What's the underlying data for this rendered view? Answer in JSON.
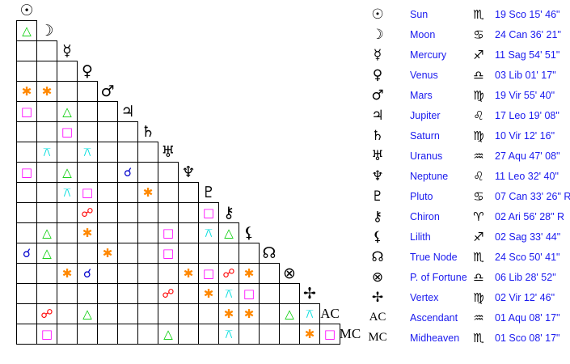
{
  "planets": [
    {
      "name": "Sun",
      "glyph": "☉",
      "sign_glyph": "♏",
      "position": "19 Sco 15' 46\""
    },
    {
      "name": "Moon",
      "glyph": "☽",
      "sign_glyph": "♋",
      "position": "24 Can 36' 21\""
    },
    {
      "name": "Mercury",
      "glyph": "☿",
      "sign_glyph": "♐",
      "position": "11 Sag 54' 51\""
    },
    {
      "name": "Venus",
      "glyph": "♀",
      "sign_glyph": "♎",
      "position": "03 Lib 01' 17\""
    },
    {
      "name": "Mars",
      "glyph": "♂",
      "sign_glyph": "♍",
      "position": "19 Vir 55' 40\""
    },
    {
      "name": "Jupiter",
      "glyph": "♃",
      "sign_glyph": "♌",
      "position": "17 Leo 19' 08\""
    },
    {
      "name": "Saturn",
      "glyph": "♄",
      "sign_glyph": "♍",
      "position": "10 Vir 12' 16\""
    },
    {
      "name": "Uranus",
      "glyph": "♅",
      "sign_glyph": "♒",
      "position": "27 Aqu 47' 08\""
    },
    {
      "name": "Neptune",
      "glyph": "♆",
      "sign_glyph": "♌",
      "position": "11 Leo 32' 40\""
    },
    {
      "name": "Pluto",
      "glyph": "♇",
      "sign_glyph": "♋",
      "position": "07 Can 33' 26\" R"
    },
    {
      "name": "Chiron",
      "glyph": "⚷",
      "sign_glyph": "♈",
      "position": "02 Ari 56' 28\" R"
    },
    {
      "name": "Lilith",
      "glyph": "⚸",
      "sign_glyph": "♐",
      "position": "02 Sag 33' 44\""
    },
    {
      "name": "True Node",
      "glyph": "☊",
      "sign_glyph": "♏",
      "position": "24 Sco 50' 41\""
    },
    {
      "name": "P. of Fortune",
      "glyph": "⊗",
      "sign_glyph": "♎",
      "position": "06 Lib 28' 52\""
    },
    {
      "name": "Vertex",
      "glyph": "✢",
      "sign_glyph": "♍",
      "position": "02 Vir 12' 46\""
    },
    {
      "name": "Ascendant",
      "glyph": "AC",
      "sign_glyph": "♒",
      "position": "01 Aqu 08' 17\""
    },
    {
      "name": "Midheaven",
      "glyph": "MC",
      "sign_glyph": "♏",
      "position": "01 Sco 08' 17\""
    }
  ],
  "aspect_types": {
    "conjunction": {
      "glyph": "☌",
      "color": "#0000cc"
    },
    "opposition": {
      "glyph": "☍",
      "color": "#ff0000"
    },
    "trine": {
      "glyph": "△",
      "color": "#00cc00"
    },
    "square": {
      "glyph": "□",
      "color": "#ff00ff"
    },
    "sextile": {
      "glyph": "✱",
      "color": "#ff8800"
    },
    "quincunx": {
      "glyph": "⚻",
      "color": "#00dddd"
    }
  },
  "aspects": [
    {
      "a": "Moon",
      "b": "Sun",
      "type": "trine"
    },
    {
      "a": "Mars",
      "b": "Sun",
      "type": "sextile"
    },
    {
      "a": "Mars",
      "b": "Moon",
      "type": "sextile"
    },
    {
      "a": "Jupiter",
      "b": "Sun",
      "type": "square"
    },
    {
      "a": "Jupiter",
      "b": "Mercury",
      "type": "trine"
    },
    {
      "a": "Saturn",
      "b": "Mercury",
      "type": "square"
    },
    {
      "a": "Uranus",
      "b": "Moon",
      "type": "quincunx"
    },
    {
      "a": "Uranus",
      "b": "Venus",
      "type": "quincunx"
    },
    {
      "a": "Neptune",
      "b": "Sun",
      "type": "square"
    },
    {
      "a": "Neptune",
      "b": "Mercury",
      "type": "trine"
    },
    {
      "a": "Neptune",
      "b": "Jupiter",
      "type": "conjunction"
    },
    {
      "a": "Pluto",
      "b": "Mercury",
      "type": "quincunx"
    },
    {
      "a": "Pluto",
      "b": "Venus",
      "type": "square"
    },
    {
      "a": "Pluto",
      "b": "Saturn",
      "type": "sextile"
    },
    {
      "a": "Chiron",
      "b": "Venus",
      "type": "opposition"
    },
    {
      "a": "Chiron",
      "b": "Pluto",
      "type": "square"
    },
    {
      "a": "Lilith",
      "b": "Moon",
      "type": "trine"
    },
    {
      "a": "Lilith",
      "b": "Venus",
      "type": "sextile"
    },
    {
      "a": "Lilith",
      "b": "Uranus",
      "type": "square"
    },
    {
      "a": "Lilith",
      "b": "Pluto",
      "type": "quincunx"
    },
    {
      "a": "Lilith",
      "b": "Chiron",
      "type": "trine"
    },
    {
      "a": "True Node",
      "b": "Sun",
      "type": "conjunction"
    },
    {
      "a": "True Node",
      "b": "Moon",
      "type": "trine"
    },
    {
      "a": "True Node",
      "b": "Mars",
      "type": "sextile"
    },
    {
      "a": "True Node",
      "b": "Uranus",
      "type": "square"
    },
    {
      "a": "P. of Fortune",
      "b": "Mercury",
      "type": "sextile"
    },
    {
      "a": "P. of Fortune",
      "b": "Venus",
      "type": "conjunction"
    },
    {
      "a": "P. of Fortune",
      "b": "Neptune",
      "type": "sextile"
    },
    {
      "a": "P. of Fortune",
      "b": "Pluto",
      "type": "square"
    },
    {
      "a": "P. of Fortune",
      "b": "Chiron",
      "type": "opposition"
    },
    {
      "a": "P. of Fortune",
      "b": "Lilith",
      "type": "sextile"
    },
    {
      "a": "Vertex",
      "b": "Uranus",
      "type": "opposition"
    },
    {
      "a": "Vertex",
      "b": "Pluto",
      "type": "sextile"
    },
    {
      "a": "Vertex",
      "b": "Chiron",
      "type": "quincunx"
    },
    {
      "a": "Vertex",
      "b": "Lilith",
      "type": "square"
    },
    {
      "a": "Ascendant",
      "b": "Moon",
      "type": "opposition"
    },
    {
      "a": "Ascendant",
      "b": "Venus",
      "type": "trine"
    },
    {
      "a": "Ascendant",
      "b": "Chiron",
      "type": "sextile"
    },
    {
      "a": "Ascendant",
      "b": "Lilith",
      "type": "sextile"
    },
    {
      "a": "Ascendant",
      "b": "P. of Fortune",
      "type": "trine"
    },
    {
      "a": "Ascendant",
      "b": "Vertex",
      "type": "quincunx"
    },
    {
      "a": "Midheaven",
      "b": "Moon",
      "type": "square"
    },
    {
      "a": "Midheaven",
      "b": "Uranus",
      "type": "trine"
    },
    {
      "a": "Midheaven",
      "b": "Chiron",
      "type": "quincunx"
    },
    {
      "a": "Midheaven",
      "b": "Vertex",
      "type": "sextile"
    },
    {
      "a": "Midheaven",
      "b": "Ascendant",
      "type": "square"
    }
  ]
}
